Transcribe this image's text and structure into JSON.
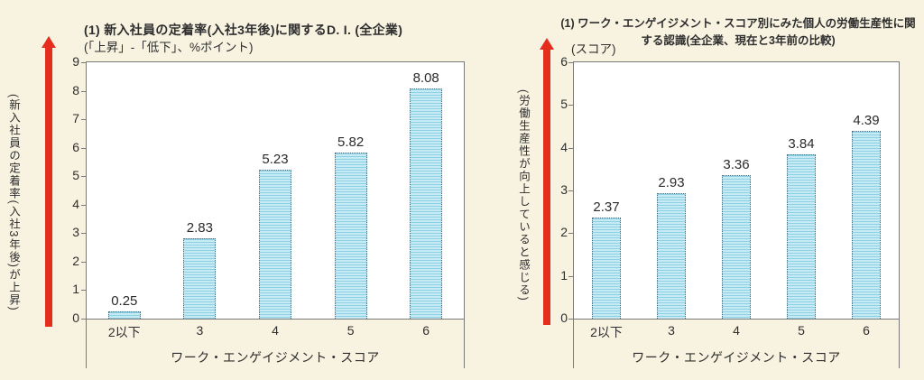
{
  "page_background": "#f8f3e1",
  "colors": {
    "background": "#f8f3e1",
    "arrow_red": "#e52d1e",
    "bar_fill_light": "#c6ebf5",
    "bar_fill_stripe": "#8dd0e3",
    "bar_border": "#4f6e7a",
    "plot_border": "#7a7a7a",
    "text": "#2e2e2e"
  },
  "chart_data": [
    {
      "type": "bar",
      "title": "(1) 新入社員の定着率(入社3年後)に関するD. I. (全企業)",
      "unit_note": "(「上昇」-「低下」、%ポイント)",
      "vertical_axis_annotation": "(新入社員の定着率(入社3年後)が上昇)",
      "xlabel": "ワーク・エンゲイジメント・スコア",
      "categories": [
        "2以下",
        "3",
        "4",
        "5",
        "6"
      ],
      "values": [
        0.25,
        2.83,
        5.23,
        5.82,
        8.08
      ],
      "value_labels": [
        "0.25",
        "2.83",
        "5.23",
        "5.82",
        "8.08"
      ],
      "ylim": [
        0,
        9
      ],
      "yticks": [
        0,
        1,
        2,
        3,
        4,
        5,
        6,
        7,
        8,
        9
      ],
      "grid": false,
      "legend": "none"
    },
    {
      "type": "bar",
      "title": "(1) ワーク・エンゲイジメント・スコア別にみた個人の労働生産性に関する認識(全企業、現在と3年前の比較)",
      "unit_note": "(スコア)",
      "vertical_axis_annotation": "(労働生産性が向上していると感じる)",
      "xlabel": "ワーク・エンゲイジメント・スコア",
      "categories": [
        "2以下",
        "3",
        "4",
        "5",
        "6"
      ],
      "values": [
        2.37,
        2.93,
        3.36,
        3.84,
        4.39
      ],
      "value_labels": [
        "2.37",
        "2.93",
        "3.36",
        "3.84",
        "4.39"
      ],
      "ylim": [
        0,
        6
      ],
      "yticks": [
        0,
        1,
        2,
        3,
        4,
        5,
        6
      ],
      "grid": false,
      "legend": "none"
    }
  ]
}
